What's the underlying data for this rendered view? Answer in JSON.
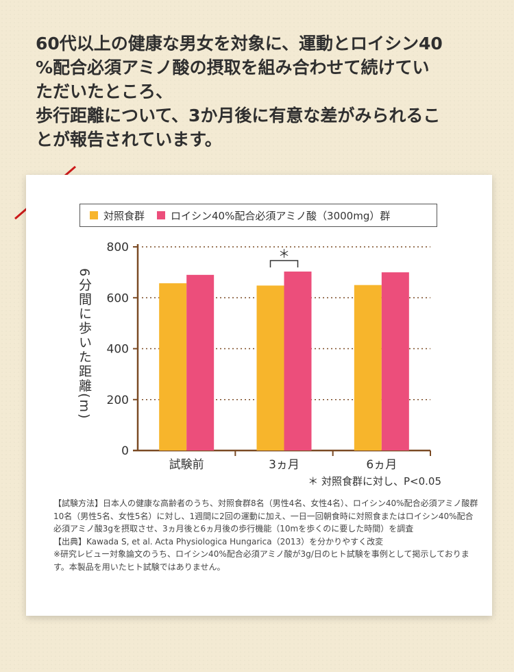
{
  "headline": {
    "line1": "60代以上の健康な男女を対象に、運動とロイシン40",
    "line2": "%配合必須アミノ酸の摂取を組み合わせて続けてい",
    "line3": "ただいたところ、",
    "line4": "歩行距離について、3か月後に有意な差がみられるこ",
    "line5": "とが報告されています。"
  },
  "colors": {
    "control": "#f7b52c",
    "leucine": "#ec4e7b",
    "axis": "#7a4a24",
    "accent_line": "#cc1a1a"
  },
  "legend": {
    "control_label": "対照食群",
    "leucine_label": "ロイシン40%配合必須アミノ酸（3000mg）群"
  },
  "y_axis_label": "6分間に歩いた距離(m)",
  "significance_mark": "＊",
  "significance_note": "＊ 対照食群に対し、P<0.05",
  "chart_data": {
    "type": "bar",
    "categories": [
      "試験前",
      "3ヵ月",
      "6ヵ月"
    ],
    "series": [
      {
        "name": "対照食群",
        "values": [
          657,
          648,
          650
        ]
      },
      {
        "name": "ロイシン40%配合必須アミノ酸（3000mg）群",
        "values": [
          690,
          703,
          700
        ]
      }
    ],
    "ylabel": "6分間に歩いた距離(m)",
    "ylim": [
      0,
      800
    ],
    "yticks": [
      0,
      200,
      400,
      600,
      800
    ],
    "grid": "dotted horizontal",
    "legend_position": "top",
    "annotation": "＊ 対照食群に対し、P<0.05"
  },
  "notes": {
    "method": "【試験方法】日本人の健康な高齢者のうち、対照食群8名（男性4名、女性4名）、ロイシン40%配合必須アミノ酸群10名（男性5名、女性5名）に対し、1週間に2回の運動に加え、一日一回朝食時に対照食またはロイシン40%配合必須アミノ酸3gを摂取させ、3ヵ月後と6ヵ月後の歩行機能（10mを歩くのに要した時間）を調査",
    "source": "【出典】Kawada S, et al. Acta Physiologica Hungarica（2013）を分かりやすく改変",
    "disclaimer": "※研究レビュー対象論文のうち、ロイシン40%配合必須アミノ酸が3g/日のヒト試験を事例として掲示しております。本製品を用いたヒト試験ではありません。"
  }
}
